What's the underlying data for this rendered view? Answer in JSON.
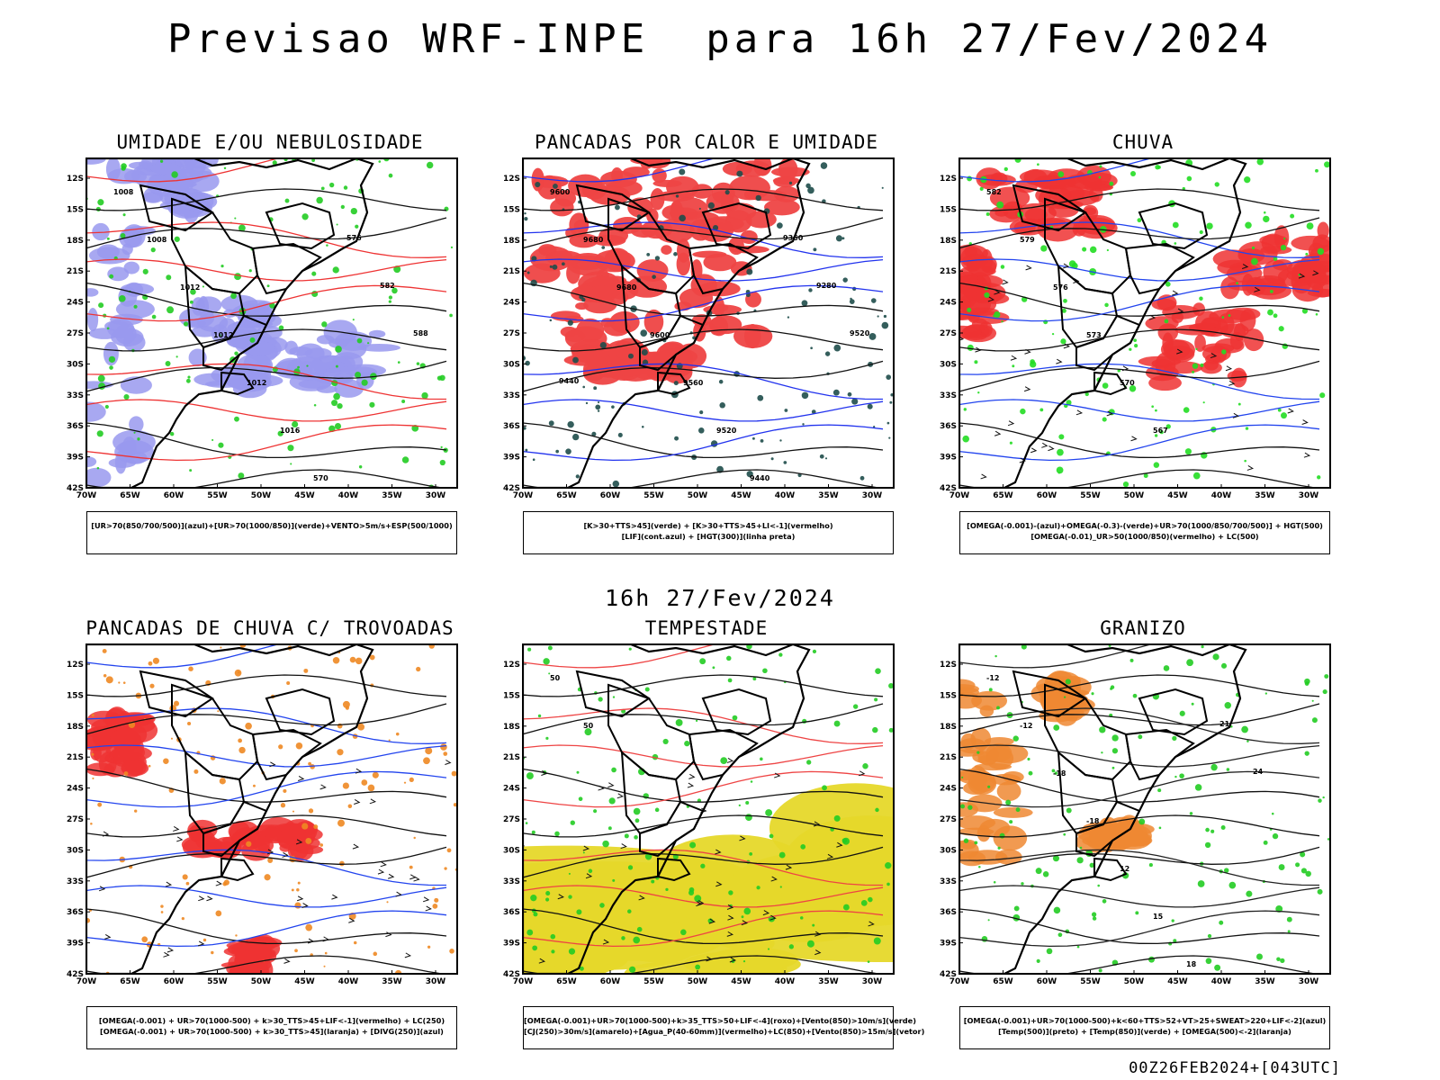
{
  "page": {
    "title": "Previsao WRF-INPE  para 16h 27/Fev/2024",
    "mid_title": "16h 27/Fev/2024",
    "footer": "00Z26FEB2024+[043UTC]"
  },
  "axes": {
    "lat_labels": [
      "12S",
      "15S",
      "18S",
      "21S",
      "24S",
      "27S",
      "30S",
      "33S",
      "36S",
      "39S",
      "42S"
    ],
    "lon_labels": [
      "70W",
      "65W",
      "60W",
      "55W",
      "50W",
      "45W",
      "40W",
      "35W",
      "30W"
    ]
  },
  "panels": [
    {
      "title": "UMIDADE E/OU NEBULOSIDADE",
      "legend": [
        "[UR>70(850/700/500)](azul)+[UR>70(1000/850)](verde)+VENTO>5m/s+ESP(500/1000)"
      ],
      "contour_labels": [
        "1008",
        "1008",
        "1012",
        "1012",
        "1012",
        "1016",
        "570",
        "576",
        "582",
        "588"
      ],
      "colors": {
        "primary": "#9999ee",
        "secondary": "#22cc22",
        "contour": "#ee3333"
      }
    },
    {
      "title": "PANCADAS POR CALOR E UMIDADE",
      "legend": [
        "[K>30+TTS>45](verde) + [K>30+TTS>45+LI<-1](vermelho)",
        "[LIF](cont.azul) + [HGT(300)](linha preta)"
      ],
      "contour_labels": [
        "9600",
        "9680",
        "9680",
        "9600",
        "9560",
        "9520",
        "9440",
        "9360",
        "9280",
        "9520",
        "9440"
      ],
      "colors": {
        "primary": "#ee4444",
        "secondary": "#1e4d4a",
        "contour": "#2233ee"
      }
    },
    {
      "title": "CHUVA",
      "legend": [
        "[OMEGA(-0.001)-(azul)+OMEGA(-0.3)-(verde)+UR>70(1000/850/700/500)] + HGT(500)",
        "[OMEGA(-0.01)_UR>50(1000/850)(vermelho) + LC(500)"
      ],
      "contour_labels": [
        "582",
        "579",
        "576",
        "573",
        "570",
        "567"
      ],
      "colors": {
        "primary": "#ee3333",
        "secondary": "#22dd22",
        "contour": "#2244ee"
      }
    },
    {
      "title": "PANCADAS DE CHUVA C/ TROVOADAS",
      "legend": [
        "[OMEGA(-0.001) + UR>70(1000-500) + k>30_TTS>45+LIF<-1](vermelho) + LC(250)",
        "[OMEGA(-0.001) + UR>70(1000-500) + k>30_TTS>45](laranja) + [DIVG(250)](azul)"
      ],
      "contour_labels": [],
      "colors": {
        "primary": "#ee3333",
        "secondary": "#ee8822",
        "contour": "#2244ee"
      }
    },
    {
      "title": "TEMPESTADE",
      "legend": [
        "[OMEGA(-0.001)+UR>70(1000-500)+k>35_TTS>50+LIF<-4](roxo)+[Vento(850)>10m/s](verde)",
        "[CJ(250)>30m/s](amarelo)+[Agua_P(40-60mm)](vermelho)+LC(850)+[Vento(850)>15m/s](vetor)"
      ],
      "contour_labels": [
        "50",
        "50"
      ],
      "colors": {
        "primary": "#e6d82a",
        "secondary": "#22cc22",
        "contour": "#ee4444"
      }
    },
    {
      "title": "GRANIZO",
      "legend": [
        "[OMEGA(-0.001)+UR>70(1000-500)+k<60+TTS>52+VT>25+SWEAT>220+LIF<-2](azul)",
        "[Temp(500)](preto) + [Temp(850)](verde) + [OMEGA(500)<-2](laranja)"
      ],
      "contour_labels": [
        "-12",
        "-12",
        "-18",
        "-18",
        "12",
        "15",
        "18",
        "21",
        "24"
      ],
      "colors": {
        "primary": "#ee8833",
        "secondary": "#22cc22",
        "contour": "#222222"
      }
    }
  ]
}
